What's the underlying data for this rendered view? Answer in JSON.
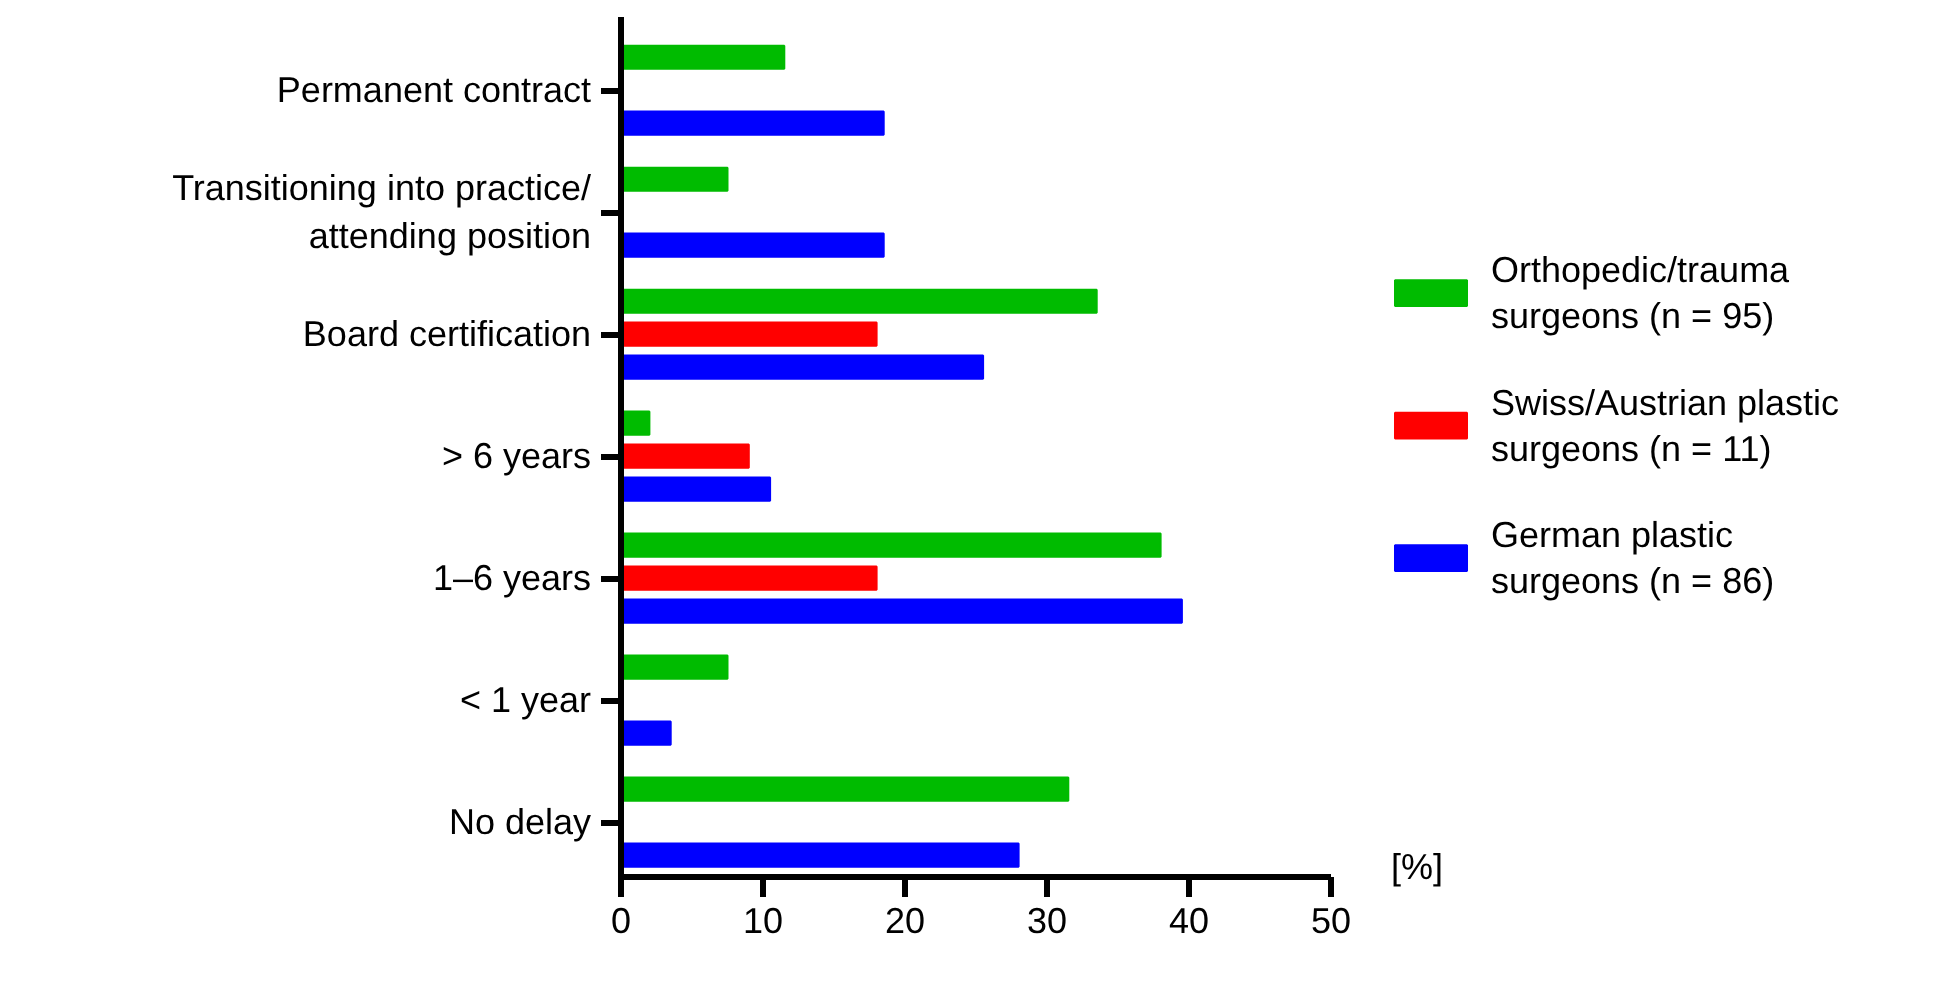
{
  "chart_data": {
    "type": "bar",
    "orientation": "horizontal",
    "xlabel": "[%]",
    "categories": [
      "Permanent contract",
      "Transitioning into practice/ attending position",
      "Board certification",
      "> 6 years",
      "1–6 years",
      "< 1 year",
      "No delay"
    ],
    "series": [
      {
        "name": "Orthopedic/trauma surgeons (n = 95)",
        "color": "#00bb00",
        "values": [
          11.5,
          7.5,
          33.5,
          2,
          38,
          7.5,
          31.5
        ]
      },
      {
        "name": "Swiss/Austrian plastic surgeons (n = 11)",
        "color": "#ff0000",
        "values": [
          null,
          null,
          18,
          9,
          18,
          null,
          null
        ]
      },
      {
        "name": "German plastic surgeons (n = 86)",
        "color": "#0000ff",
        "values": [
          18.5,
          18.5,
          25.5,
          10.5,
          39.5,
          3.5,
          28
        ]
      }
    ],
    "xlim": [
      0,
      50
    ],
    "xticks": [
      0,
      10,
      20,
      30,
      40,
      50
    ],
    "legend": "right"
  }
}
